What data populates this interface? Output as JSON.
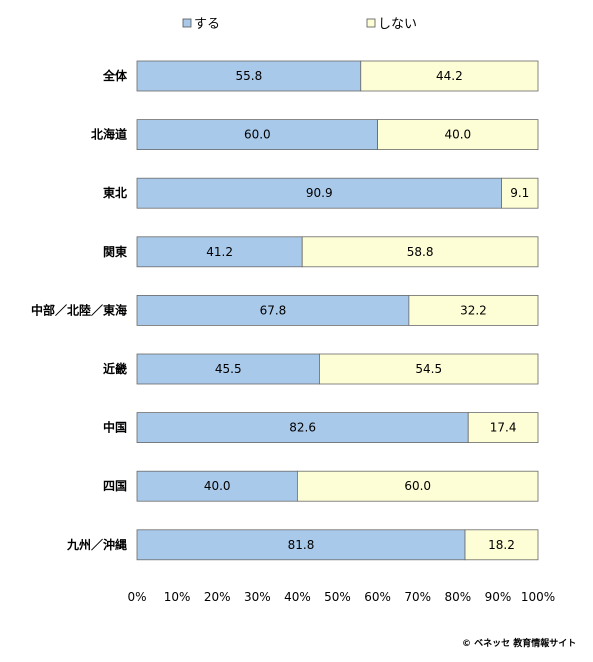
{
  "chart_data": {
    "type": "bar",
    "orientation": "horizontal",
    "stacked": true,
    "categories": [
      "全体",
      "北海道",
      "東北",
      "関東",
      "中部／北陸／東海",
      "近畿",
      "中国",
      "四国",
      "九州／沖縄"
    ],
    "series": [
      {
        "name": "する",
        "values": [
          55.8,
          60.0,
          90.9,
          41.2,
          67.8,
          45.5,
          82.6,
          40.0,
          81.8
        ],
        "color": "#a9c9ea"
      },
      {
        "name": "しない",
        "values": [
          44.2,
          40.0,
          9.1,
          58.8,
          32.2,
          54.5,
          17.4,
          60.0,
          18.2
        ],
        "color": "#fdfdd6"
      }
    ],
    "xlim": [
      0,
      100
    ],
    "xticks": [
      "0%",
      "10%",
      "20%",
      "30%",
      "40%",
      "50%",
      "60%",
      "70%",
      "80%",
      "90%",
      "100%"
    ],
    "legend_position": "top",
    "grid": false
  },
  "footer": {
    "copyright": "© ベネッセ 教育情報サイト"
  }
}
